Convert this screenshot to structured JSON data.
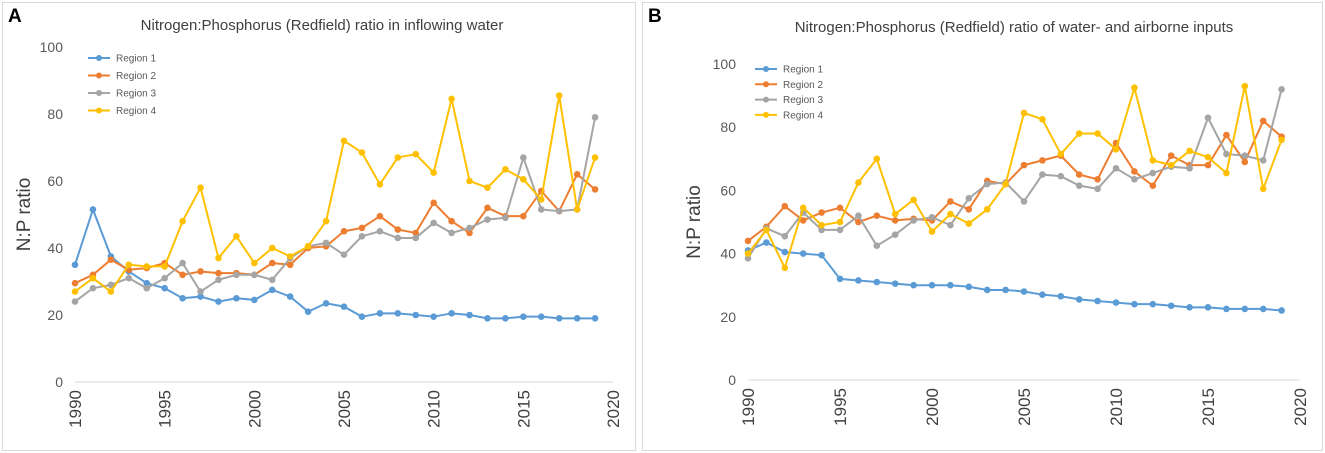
{
  "colors": {
    "region1": "#5b9bd5",
    "region2": "#ed7d31",
    "region3": "#a5a5a5",
    "region4": "#ffc000"
  },
  "chart_data": [
    {
      "panel": "A",
      "type": "line",
      "title": "Nitrogen:Phosphorus (Redfield) ratio in inflowing water",
      "xlabel": "",
      "ylabel": "N:P ratio",
      "xlim": [
        1990,
        2020
      ],
      "ylim": [
        0,
        100
      ],
      "xticks": [
        1990,
        1995,
        2000,
        2005,
        2010,
        2015,
        2020
      ],
      "yticks": [
        0,
        20,
        40,
        60,
        80,
        100
      ],
      "legend": "top-left",
      "x": [
        1990,
        1991,
        1992,
        1993,
        1994,
        1995,
        1996,
        1997,
        1998,
        1999,
        2000,
        2001,
        2002,
        2003,
        2004,
        2005,
        2006,
        2007,
        2008,
        2009,
        2010,
        2011,
        2012,
        2013,
        2014,
        2015,
        2016,
        2017,
        2018,
        2019
      ],
      "series": [
        {
          "name": "Region 1",
          "color_key": "region1",
          "values": [
            35,
            51.5,
            37.5,
            33,
            29.5,
            28,
            25,
            25.5,
            24,
            25,
            24.5,
            27.5,
            25.5,
            21,
            23.5,
            22.5,
            19.5,
            20.5,
            20.5,
            20,
            19.5,
            20.5,
            20,
            19,
            19,
            19.5,
            19.5,
            19,
            19,
            19
          ]
        },
        {
          "name": "Region 2",
          "color_key": "region2",
          "values": [
            29.5,
            32,
            36.5,
            33.5,
            34,
            35.5,
            32,
            33,
            32.5,
            32.5,
            32,
            35.5,
            35,
            40,
            40.5,
            45,
            46,
            49.5,
            45.5,
            44.5,
            53.5,
            48,
            44.5,
            52,
            49.5,
            49.5,
            57,
            51,
            62,
            57.5
          ]
        },
        {
          "name": "Region 3",
          "color_key": "region3",
          "values": [
            24,
            28,
            29,
            31,
            28,
            31,
            35.5,
            27,
            30.5,
            32,
            32,
            30.5,
            37,
            40.5,
            41.5,
            38,
            43.5,
            45,
            43,
            43,
            47.5,
            44.5,
            46,
            48.5,
            49,
            67,
            51.5,
            51,
            51.5,
            79
          ]
        },
        {
          "name": "Region 4",
          "color_key": "region4",
          "values": [
            27,
            31,
            27,
            35,
            34.5,
            34.5,
            48,
            58,
            37,
            43.5,
            35.5,
            40,
            37.5,
            40.5,
            48,
            72,
            68.5,
            59,
            67,
            68,
            62.5,
            84.5,
            60,
            58,
            63.5,
            60.5,
            54.5,
            85.5,
            51.5,
            67
          ]
        }
      ]
    },
    {
      "panel": "B",
      "type": "line",
      "title": "Nitrogen:Phosphorus (Redfield) ratio of water- and airborne inputs",
      "xlabel": "",
      "ylabel": "N:P ratio",
      "xlim": [
        1990,
        2020
      ],
      "ylim": [
        0,
        100
      ],
      "xticks": [
        1990,
        1995,
        2000,
        2005,
        2010,
        2015,
        2020
      ],
      "yticks": [
        0,
        20,
        40,
        60,
        80,
        100
      ],
      "legend": "top-left",
      "x": [
        1990,
        1991,
        1992,
        1993,
        1994,
        1995,
        1996,
        1997,
        1998,
        1999,
        2000,
        2001,
        2002,
        2003,
        2004,
        2005,
        2006,
        2007,
        2008,
        2009,
        2010,
        2011,
        2012,
        2013,
        2014,
        2015,
        2016,
        2017,
        2018,
        2019
      ],
      "series": [
        {
          "name": "Region 1",
          "color_key": "region1",
          "values": [
            41,
            43.5,
            40.5,
            40,
            39.5,
            32,
            31.5,
            31,
            30.5,
            30,
            30,
            30,
            29.5,
            28.5,
            28.5,
            28,
            27,
            26.5,
            25.5,
            25,
            24.5,
            24,
            24,
            23.5,
            23,
            23,
            22.5,
            22.5,
            22.5,
            22
          ]
        },
        {
          "name": "Region 2",
          "color_key": "region2",
          "values": [
            44,
            48.5,
            55,
            50.5,
            53,
            54.5,
            50,
            52,
            50.5,
            51,
            50.5,
            56.5,
            54,
            63,
            62,
            68,
            69.5,
            71,
            65,
            63.5,
            75,
            66,
            61.5,
            71,
            68,
            68,
            77.5,
            69,
            82,
            77
          ]
        },
        {
          "name": "Region 3",
          "color_key": "region3",
          "values": [
            38.5,
            48,
            45.5,
            53,
            47.5,
            47.5,
            52,
            42.5,
            46,
            50.5,
            51.5,
            49,
            57.5,
            62,
            62.5,
            56.5,
            65,
            64.5,
            61.5,
            60.5,
            67,
            63.5,
            65.5,
            67.5,
            67,
            83,
            71.5,
            71,
            69.5,
            92
          ]
        },
        {
          "name": "Region 4",
          "color_key": "region4",
          "values": [
            40,
            47.5,
            35.5,
            54.5,
            49,
            50,
            62.5,
            70,
            52.5,
            57,
            47,
            52.5,
            49.5,
            54,
            62,
            84.5,
            82.5,
            71.5,
            78,
            78,
            73,
            92.5,
            69.5,
            68,
            72.5,
            70.5,
            65.5,
            93,
            60.5,
            76
          ]
        }
      ]
    }
  ]
}
